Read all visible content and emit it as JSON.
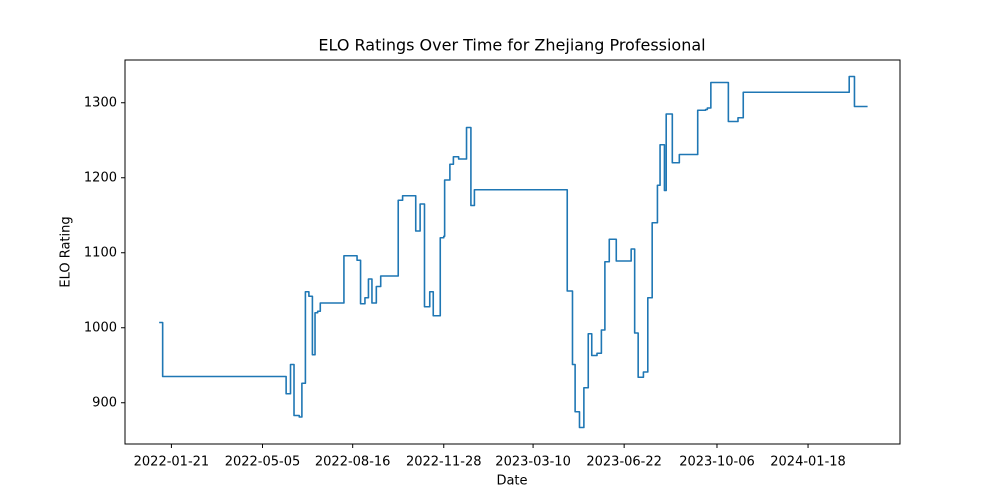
{
  "chart_data": {
    "type": "line",
    "step": "post",
    "title": "ELO Ratings Over Time for Zhejiang Professional",
    "x_label": "Date",
    "y_label": "ELO Rating",
    "x": [
      "2022-01-07",
      "2022-01-11",
      "2022-06-01",
      "2022-06-06",
      "2022-06-10",
      "2022-06-16",
      "2022-06-19",
      "2022-06-23",
      "2022-06-27",
      "2022-07-01",
      "2022-07-04",
      "2022-07-07",
      "2022-07-10",
      "2022-08-06",
      "2022-08-21",
      "2022-08-25",
      "2022-08-30",
      "2022-09-03",
      "2022-09-07",
      "2022-09-12",
      "2022-09-17",
      "2022-10-07",
      "2022-10-12",
      "2022-10-27",
      "2022-11-01",
      "2022-11-06",
      "2022-11-12",
      "2022-11-16",
      "2022-11-24",
      "2022-11-28",
      "2022-11-29",
      "2022-12-05",
      "2022-12-09",
      "2022-12-15",
      "2022-12-24",
      "2022-12-29",
      "2023-01-02",
      "2023-04-18",
      "2023-04-24",
      "2023-04-27",
      "2023-05-02",
      "2023-05-07",
      "2023-05-12",
      "2023-05-16",
      "2023-05-22",
      "2023-05-27",
      "2023-05-31",
      "2023-06-05",
      "2023-06-13",
      "2023-06-30",
      "2023-07-04",
      "2023-07-08",
      "2023-07-14",
      "2023-07-19",
      "2023-07-24",
      "2023-07-30",
      "2023-08-02",
      "2023-08-07",
      "2023-08-09",
      "2023-08-16",
      "2023-08-24",
      "2023-09-14",
      "2023-09-23",
      "2023-09-25",
      "2023-09-29",
      "2023-10-19",
      "2023-10-30",
      "2023-11-05",
      "2024-03-05",
      "2024-03-11",
      "2024-03-26"
    ],
    "series": [
      {
        "name": "ELO Rating",
        "color": "#1f77b4",
        "values": [
          1007,
          935,
          912,
          951,
          883,
          881,
          926,
          1048,
          1042,
          964,
          1020,
          1022,
          1033,
          1096,
          1090,
          1032,
          1040,
          1065,
          1033,
          1055,
          1069,
          1170,
          1176,
          1129,
          1165,
          1028,
          1048,
          1016,
          1120,
          1122,
          1197,
          1218,
          1228,
          1225,
          1267,
          1163,
          1184,
          1049,
          951,
          888,
          867,
          920,
          992,
          963,
          966,
          997,
          1088,
          1118,
          1089,
          1105,
          993,
          934,
          941,
          1040,
          1140,
          1190,
          1244,
          1183,
          1285,
          1220,
          1231,
          1290,
          1291,
          1293,
          1327,
          1275,
          1280,
          1314,
          1335,
          1295,
          1295
        ]
      }
    ],
    "xlim": [
      "2021-11-29",
      "2024-05-02"
    ],
    "xticks": [
      "2022-01-21",
      "2022-05-05",
      "2022-08-16",
      "2022-11-28",
      "2023-03-10",
      "2023-06-22",
      "2023-10-06",
      "2024-01-18"
    ],
    "ylim": [
      845,
      1357
    ],
    "yticks": [
      900,
      1000,
      1100,
      1200,
      1300
    ],
    "grid": false
  }
}
